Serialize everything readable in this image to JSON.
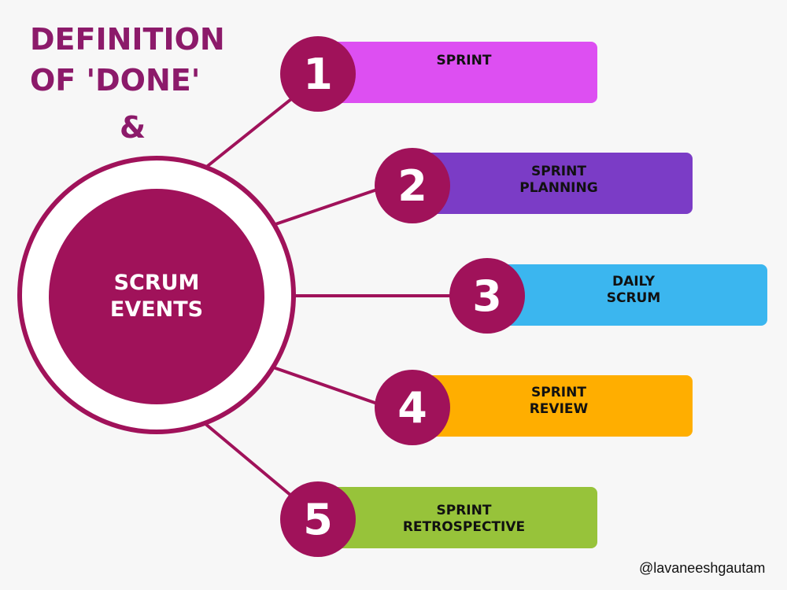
{
  "title": {
    "line1": "DEFINITION",
    "line2": "OF 'DONE'",
    "ampersand": "&"
  },
  "hub": {
    "line1": "SCRUM",
    "line2": "EVENTS",
    "color": "#a0125a"
  },
  "events": [
    {
      "number": "1",
      "label": "SPRINT",
      "color": "#dd4ff2"
    },
    {
      "number": "2",
      "label": "SPRINT\nPLANNING",
      "color": "#7b3cc6"
    },
    {
      "number": "3",
      "label": "DAILY\nSCRUM",
      "color": "#3bb6ef"
    },
    {
      "number": "4",
      "label": "SPRINT\nREVIEW",
      "color": "#ffae00"
    },
    {
      "number": "5",
      "label": "SPRINT\nRETROSPECTIVE",
      "color": "#97c33a"
    }
  ],
  "footer": {
    "handle": "@lavaneeshgautam"
  }
}
